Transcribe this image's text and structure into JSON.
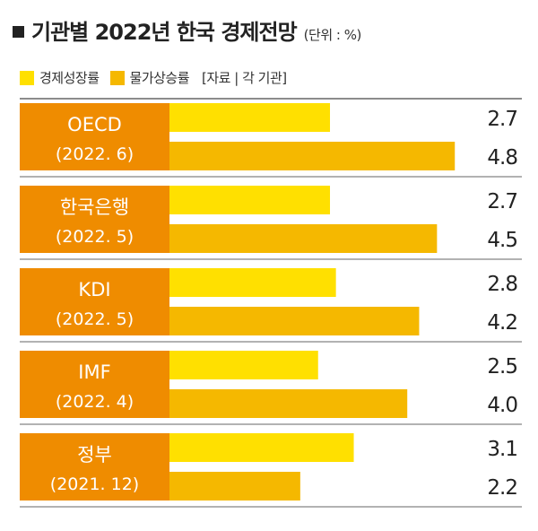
{
  "title": "기관별 2022년 한국 경제전망",
  "unit": "(단위 : %)",
  "legend": {
    "growth": "경제성장률",
    "inflation": "물가상승률",
    "source": "[자료 | 각 기관]"
  },
  "colors": {
    "growth": "#ffe000",
    "inflation": "#f5b800",
    "label_box": "#ef8c00",
    "divider": "#666666"
  },
  "chart_data": {
    "type": "bar",
    "orientation": "horizontal",
    "groups": [
      {
        "org": "OECD",
        "date": "(2022. 6)"
      },
      {
        "org": "한국은행",
        "date": "(2022. 5)"
      },
      {
        "org": "KDI",
        "date": "(2022. 5)"
      },
      {
        "org": "IMF",
        "date": "(2022. 4)"
      },
      {
        "org": "정부",
        "date": "(2021. 12)"
      }
    ],
    "series": [
      {
        "name": "경제성장률",
        "values": [
          2.7,
          2.7,
          2.8,
          2.5,
          3.1
        ],
        "labels": [
          "2.7",
          "2.7",
          "2.8",
          "2.5",
          "3.1"
        ]
      },
      {
        "name": "물가상승률",
        "values": [
          4.8,
          4.5,
          4.2,
          4.0,
          2.2
        ],
        "labels": [
          "4.8",
          "4.5",
          "4.2",
          "4.0",
          "2.2"
        ]
      }
    ]
  }
}
